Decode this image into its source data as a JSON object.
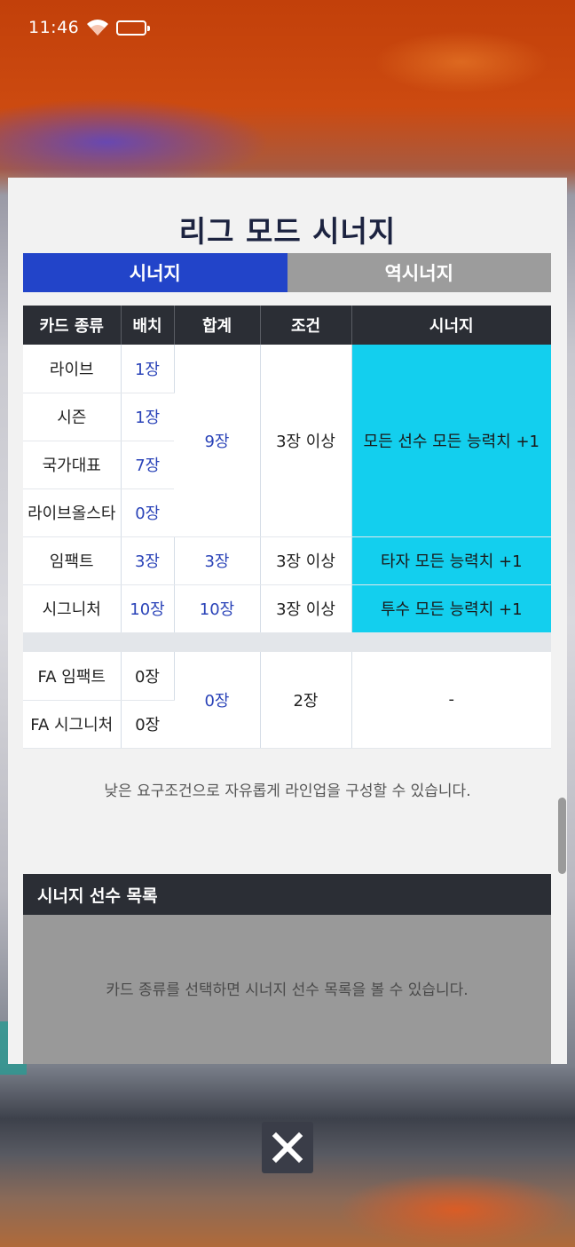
{
  "status_bar": {
    "time": "11:46"
  },
  "modal": {
    "title": "리그 모드 시너지",
    "tabs": [
      {
        "label": "시너지",
        "active": true
      },
      {
        "label": "역시너지",
        "active": false
      }
    ],
    "table": {
      "headers": [
        "카드 종류",
        "배치",
        "합계",
        "조건",
        "시너지"
      ],
      "group1": {
        "rows": [
          {
            "type": "라이브",
            "count": "1장"
          },
          {
            "type": "시즌",
            "count": "1장"
          },
          {
            "type": "국가대표",
            "count": "7장"
          },
          {
            "type": "라이브올스타",
            "count": "0장"
          }
        ],
        "total": "9장",
        "condition": "3장 이상",
        "synergy": "모든 선수 모든 능력치 +1"
      },
      "impact": {
        "type": "임팩트",
        "count": "3장",
        "total": "3장",
        "condition": "3장 이상",
        "synergy": "타자 모든 능력치 +1"
      },
      "signature": {
        "type": "시그니처",
        "count": "10장",
        "total": "10장",
        "condition": "3장 이상",
        "synergy": "투수 모든 능력치 +1"
      },
      "fa": {
        "rows": [
          {
            "type": "FA 임팩트",
            "count": "0장"
          },
          {
            "type": "FA 시그니처",
            "count": "0장"
          }
        ],
        "total": "0장",
        "condition": "2장",
        "synergy": "-"
      }
    },
    "note": "낮은 요구조건으로 자유롭게 라인업을 구성할 수 있습니다.",
    "player_list": {
      "header": "시너지 선수 목록",
      "empty_message": "카드 종류를 선택하면 시너지 선수 목록을 볼 수 있습니다."
    }
  },
  "colors": {
    "active_tab": "#2244c9",
    "inactive_tab": "#9c9c9c",
    "synergy_highlight": "#13cfee",
    "header_dark": "#2b2e35",
    "count_blue": "#2a43b8"
  }
}
